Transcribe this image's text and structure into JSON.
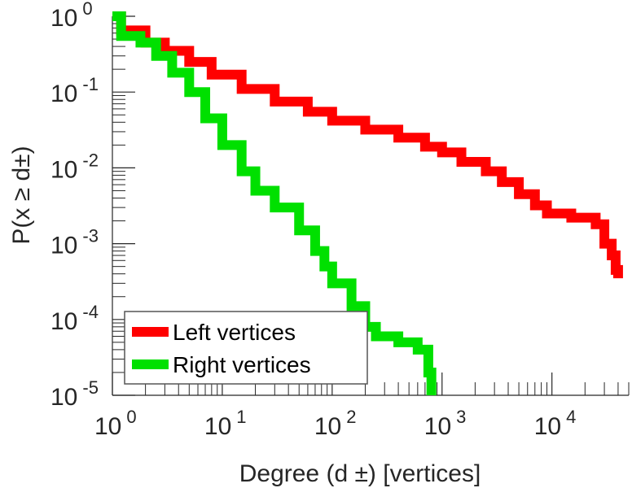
{
  "chart_data": {
    "type": "line",
    "title": "",
    "xlabel": "Degree (d ±) [vertices]",
    "ylabel": "P(x ≥ d±)",
    "x_scale": "log",
    "y_scale": "log",
    "xlim": [
      1,
      50000
    ],
    "ylim": [
      1e-05,
      1
    ],
    "x_ticks": [
      {
        "base": "10",
        "exp": "0",
        "value": 1
      },
      {
        "base": "10",
        "exp": "1",
        "value": 10
      },
      {
        "base": "10",
        "exp": "2",
        "value": 100
      },
      {
        "base": "10",
        "exp": "3",
        "value": 1000
      },
      {
        "base": "10",
        "exp": "4",
        "value": 10000
      }
    ],
    "y_ticks": [
      {
        "base": "10",
        "exp": "0",
        "value": 1
      },
      {
        "base": "10",
        "exp": "-1",
        "value": 0.1
      },
      {
        "base": "10",
        "exp": "-2",
        "value": 0.01
      },
      {
        "base": "10",
        "exp": "-3",
        "value": 0.001
      },
      {
        "base": "10",
        "exp": "-4",
        "value": 0.0001
      },
      {
        "base": "10",
        "exp": "-5",
        "value": 1e-05
      }
    ],
    "grid": false,
    "legend_position": "bottom-left",
    "series": [
      {
        "name": "Left vertices",
        "color": "#ff0000",
        "step": true,
        "points": [
          [
            1,
            1
          ],
          [
            1.2,
            0.65
          ],
          [
            2,
            0.45
          ],
          [
            3,
            0.35
          ],
          [
            5,
            0.25
          ],
          [
            8,
            0.17
          ],
          [
            15,
            0.11
          ],
          [
            30,
            0.075
          ],
          [
            60,
            0.055
          ],
          [
            100,
            0.042
          ],
          [
            200,
            0.032
          ],
          [
            400,
            0.025
          ],
          [
            700,
            0.019
          ],
          [
            1000,
            0.016
          ],
          [
            1500,
            0.012
          ],
          [
            2500,
            0.009
          ],
          [
            3500,
            0.0065
          ],
          [
            5000,
            0.0045
          ],
          [
            7000,
            0.0032
          ],
          [
            9000,
            0.0025
          ],
          [
            15000,
            0.0022
          ],
          [
            25000,
            0.0018
          ],
          [
            30000,
            0.001
          ],
          [
            35000,
            0.0007
          ],
          [
            38000,
            0.00045
          ],
          [
            40000,
            0.00035
          ]
        ]
      },
      {
        "name": "Right vertices",
        "color": "#00e000",
        "step": true,
        "points": [
          [
            1,
            1
          ],
          [
            1.2,
            0.55
          ],
          [
            1.8,
            0.45
          ],
          [
            2.5,
            0.3
          ],
          [
            3.5,
            0.18
          ],
          [
            5,
            0.1
          ],
          [
            7,
            0.045
          ],
          [
            10,
            0.02
          ],
          [
            15,
            0.009
          ],
          [
            20,
            0.005
          ],
          [
            30,
            0.003
          ],
          [
            50,
            0.0015
          ],
          [
            70,
            0.0008
          ],
          [
            85,
            0.0005
          ],
          [
            100,
            0.0003
          ],
          [
            150,
            0.00015
          ],
          [
            200,
            8e-05
          ],
          [
            250,
            6e-05
          ],
          [
            400,
            5e-05
          ],
          [
            600,
            4e-05
          ],
          [
            750,
            2e-05
          ],
          [
            800,
            1e-05
          ]
        ]
      }
    ]
  }
}
